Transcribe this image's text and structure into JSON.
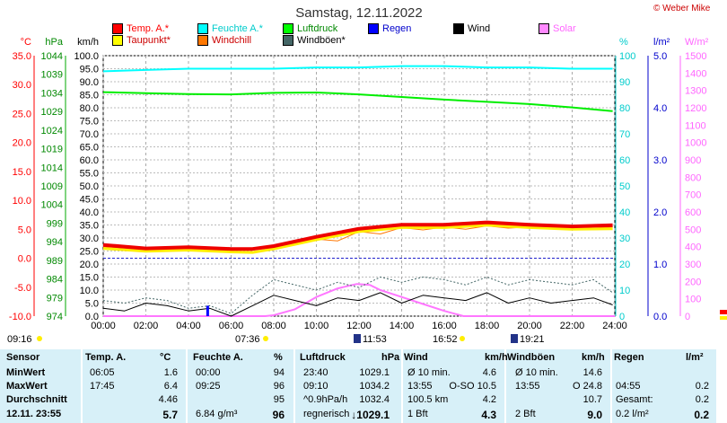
{
  "header": {
    "title": "Samstag, 12.11.2022",
    "copyright": "© Weber Mike"
  },
  "legend": [
    {
      "label": "Temp. A.*",
      "color": "#ff0000",
      "text_color": "#ff0000"
    },
    {
      "label": "Feuchte A.*",
      "color": "#00ffff",
      "text_color": "#00cccc"
    },
    {
      "label": "Luftdruck",
      "color": "#00ff00",
      "text_color": "#008800"
    },
    {
      "label": "Regen",
      "color": "#0000ff",
      "text_color": "#0000cc"
    },
    {
      "label": "Wind",
      "color": "#000000",
      "text_color": "#000000"
    },
    {
      "label": "Solar",
      "color": "#ff88ff",
      "text_color": "#ff66ff"
    },
    {
      "label": "Taupunkt*",
      "color": "#ffff00",
      "text_color": "#cc0000"
    },
    {
      "label": "Windchill",
      "color": "#ff7700",
      "text_color": "#cc0000"
    },
    {
      "label": "Windböen*",
      "color": "#446666",
      "text_color": "#000000"
    }
  ],
  "axis_units": {
    "temp": "°C",
    "hpa": "hPa",
    "kmh": "km/h",
    "pct": "%",
    "lm2": "l/m²",
    "wm2": "W/m²"
  },
  "chart_data": {
    "type": "line",
    "x_ticks": [
      "00:00",
      "02:00",
      "04:00",
      "06:00",
      "08:00",
      "10:00",
      "12:00",
      "14:00",
      "16:00",
      "18:00",
      "20:00",
      "22:00",
      "24:00"
    ],
    "xlim": [
      0,
      24
    ],
    "axes": {
      "temp": {
        "label": "°C",
        "ticks": [
          "35.0",
          "30.0",
          "25.0",
          "20.0",
          "15.0",
          "10.0",
          "5.0",
          "0.0",
          "-5.0",
          "-10.0"
        ],
        "ylim": [
          -10,
          35
        ],
        "color": "#ff0000"
      },
      "hpa": {
        "label": "hPa",
        "ticks": [
          "1044",
          "1039",
          "1034",
          "1029",
          "1024",
          "1019",
          "1014",
          "1009",
          "1004",
          "999",
          "994",
          "989",
          "984",
          "979",
          "974"
        ],
        "ylim": [
          974,
          1044
        ],
        "color": "#008800"
      },
      "kmh": {
        "label": "km/h",
        "ticks": [
          "100.0",
          "95.0",
          "90.0",
          "85.0",
          "80.0",
          "75.0",
          "70.0",
          "65.0",
          "60.0",
          "55.0",
          "50.0",
          "45.0",
          "40.0",
          "35.0",
          "30.0",
          "25.0",
          "20.0",
          "15.0",
          "10.0",
          "5.0",
          "0.0"
        ],
        "ylim": [
          0,
          100
        ],
        "color": "#000000"
      },
      "pct": {
        "label": "%",
        "ticks": [
          "100",
          "90",
          "80",
          "70",
          "60",
          "50",
          "40",
          "30",
          "20",
          "10",
          "0"
        ],
        "ylim": [
          0,
          100
        ],
        "color": "#00cccc"
      },
      "lm2": {
        "label": "l/m²",
        "ticks": [
          "5.0",
          "4.0",
          "3.0",
          "2.0",
          "1.0",
          "0.0"
        ],
        "ylim": [
          0,
          5
        ],
        "color": "#0000cc"
      },
      "wm2": {
        "label": "W/m²",
        "ticks": [
          "1500",
          "1400",
          "1300",
          "1200",
          "1100",
          "1000",
          "900",
          "800",
          "700",
          "600",
          "500",
          "400",
          "300",
          "200",
          "100",
          "0"
        ],
        "ylim": [
          0,
          1500
        ],
        "color": "#ff66ff"
      }
    },
    "series": [
      {
        "name": "Feuchte A.*",
        "axis": "pct",
        "x": [
          0,
          2,
          4,
          6,
          8,
          10,
          12,
          14,
          16,
          18,
          20,
          22,
          23.9
        ],
        "values": [
          94,
          94.5,
          95,
          95,
          95,
          95.5,
          95.5,
          96,
          96,
          95.5,
          95.5,
          95,
          95
        ]
      },
      {
        "name": "Luftdruck",
        "axis": "hpa",
        "x": [
          0,
          2,
          4,
          6,
          8,
          10,
          12,
          14,
          16,
          18,
          20,
          22,
          23.9
        ],
        "values": [
          1034.2,
          1033.9,
          1033.7,
          1033.6,
          1034.0,
          1034.1,
          1033.6,
          1032.9,
          1032.2,
          1031.6,
          1031.0,
          1030.1,
          1029.1
        ]
      },
      {
        "name": "Temp. A.*",
        "axis": "temp",
        "x": [
          0,
          2,
          4,
          6,
          7,
          8,
          10,
          12,
          14,
          16,
          18,
          20,
          22,
          23.9
        ],
        "values": [
          2.3,
          1.7,
          1.9,
          1.6,
          1.6,
          2.1,
          3.7,
          5.1,
          5.8,
          5.8,
          6.2,
          5.8,
          5.5,
          5.7
        ]
      },
      {
        "name": "Taupunkt*",
        "axis": "temp",
        "x": [
          0,
          2,
          4,
          6,
          7,
          8,
          10,
          12,
          14,
          16,
          18,
          20,
          22,
          23.9
        ],
        "values": [
          1.7,
          1.2,
          1.4,
          1.1,
          1.0,
          1.6,
          3.2,
          4.6,
          5.3,
          5.3,
          5.7,
          5.3,
          5.0,
          5.1
        ]
      },
      {
        "name": "Windchill",
        "axis": "temp",
        "x": [
          0,
          2,
          4,
          6,
          8,
          10,
          11,
          12,
          13,
          14,
          15,
          16,
          17,
          18,
          19,
          20,
          22,
          23.9
        ],
        "values": [
          2.0,
          1.5,
          1.7,
          1.4,
          1.8,
          3.3,
          3.0,
          4.6,
          4.2,
          5.3,
          4.9,
          5.4,
          5.0,
          5.6,
          5.2,
          5.4,
          5.0,
          5.4
        ]
      },
      {
        "name": "Wind",
        "axis": "kmh",
        "x": [
          0,
          1,
          2,
          3,
          4,
          5,
          6,
          7,
          8,
          9,
          10,
          11,
          12,
          13,
          14,
          15,
          16,
          17,
          18,
          19,
          20,
          21,
          22,
          23,
          23.9
        ],
        "values": [
          3,
          2,
          5,
          4,
          2,
          3,
          0,
          4,
          8,
          6,
          4,
          7,
          6,
          9,
          5,
          8,
          7,
          6,
          9,
          5,
          7,
          5,
          6,
          7,
          4.3
        ]
      },
      {
        "name": "Windböen*",
        "axis": "kmh",
        "x": [
          0,
          1,
          2,
          3,
          4,
          5,
          6,
          7,
          8,
          9,
          10,
          11,
          12,
          13,
          14,
          15,
          16,
          17,
          18,
          19,
          20,
          21,
          22,
          23,
          23.9
        ],
        "values": [
          6,
          5,
          7,
          6,
          3,
          4,
          1,
          8,
          14,
          12,
          10,
          13,
          11,
          15,
          13,
          15,
          14,
          12,
          15,
          12,
          14,
          13,
          12,
          14,
          9.0
        ]
      },
      {
        "name": "Solar",
        "axis": "wm2",
        "x": [
          0,
          7.6,
          8,
          9,
          10,
          11,
          11.9,
          12.5,
          13,
          14,
          15,
          16,
          16.9,
          24
        ],
        "values": [
          0,
          0,
          5,
          40,
          110,
          160,
          185,
          180,
          150,
          110,
          70,
          30,
          0,
          0
        ]
      }
    ],
    "rain": [
      {
        "x": 4.9,
        "value": 0.2
      }
    ],
    "sun_markers": {
      "sunrise": "07:36",
      "noon": "11:53",
      "sunset": "16:52",
      "moon": "19:21",
      "time": "09:16"
    }
  },
  "table": {
    "headers": [
      "Sensor",
      "Temp. A.",
      "°C",
      "Feuchte A.",
      "%",
      "Luftdruck",
      "hPa",
      "Wind",
      "km/h",
      "Windböen",
      "km/h",
      "Regen",
      "l/m²"
    ],
    "rows": [
      {
        "label": "MinWert",
        "c": [
          "06:05",
          "1.6",
          "00:00",
          "94",
          "23:40",
          "1029.1",
          "Ø 10 min.",
          "4.6",
          "Ø 10 min.",
          "14.6",
          "",
          ""
        ]
      },
      {
        "label": "MaxWert",
        "c": [
          "17:45",
          "6.4",
          "09:25",
          "96",
          "09:10",
          "1034.2",
          "13:55",
          "O-SO 10.5",
          "13:55",
          "O 24.8",
          "04:55",
          "0.2"
        ]
      },
      {
        "label": "Durchschnitt",
        "c": [
          "",
          "4.46",
          "",
          "95",
          "^0.9hPa/h",
          "1032.4",
          "100.5 km",
          "4.2",
          "",
          "10.7",
          "Gesamt:",
          "0.2"
        ]
      },
      {
        "label": "12.11. 23:55",
        "c": [
          "",
          "5.7",
          "6.84 g/m³",
          "96",
          "regnerisch",
          "↓1029.1",
          "1 Bft",
          "4.3",
          "2 Bft",
          "9.0",
          "0.2 l/m²",
          "0.2"
        ]
      }
    ]
  }
}
